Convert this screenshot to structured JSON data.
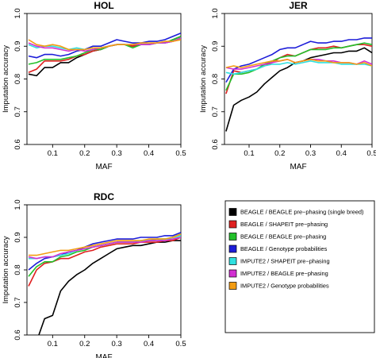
{
  "chart_data": [
    {
      "type": "line",
      "title": "HOL",
      "xlabel": "MAF",
      "ylabel": "Imputation accuracy",
      "xlim": [
        0.02,
        0.5
      ],
      "ylim": [
        0.6,
        1.0
      ],
      "xticks": [
        "0.1",
        "0.2",
        "0.3",
        "0.4",
        "0.5"
      ],
      "yticks": [
        "0.6",
        "0.7",
        "0.8",
        "0.9",
        "1.0"
      ],
      "x": [
        0.025,
        0.05,
        0.075,
        0.1,
        0.125,
        0.15,
        0.175,
        0.2,
        0.225,
        0.25,
        0.275,
        0.3,
        0.325,
        0.35,
        0.375,
        0.4,
        0.425,
        0.45,
        0.475,
        0.5
      ],
      "series": [
        {
          "key": "s1",
          "values": [
            0.815,
            0.81,
            0.835,
            0.835,
            0.85,
            0.85,
            0.865,
            0.875,
            0.885,
            0.89,
            0.9,
            0.905,
            0.905,
            0.9,
            0.905,
            0.905,
            0.91,
            0.91,
            0.92,
            0.93
          ]
        },
        {
          "key": "s2",
          "values": [
            0.82,
            0.83,
            0.855,
            0.855,
            0.855,
            0.86,
            0.87,
            0.875,
            0.885,
            0.89,
            0.9,
            0.905,
            0.905,
            0.9,
            0.905,
            0.905,
            0.91,
            0.91,
            0.915,
            0.925
          ]
        },
        {
          "key": "s3",
          "values": [
            0.845,
            0.85,
            0.86,
            0.86,
            0.86,
            0.865,
            0.87,
            0.88,
            0.89,
            0.89,
            0.9,
            0.905,
            0.905,
            0.895,
            0.905,
            0.905,
            0.91,
            0.91,
            0.92,
            0.93
          ]
        },
        {
          "key": "s4",
          "values": [
            0.87,
            0.865,
            0.875,
            0.875,
            0.87,
            0.875,
            0.885,
            0.89,
            0.9,
            0.9,
            0.91,
            0.92,
            0.915,
            0.91,
            0.91,
            0.915,
            0.915,
            0.92,
            0.93,
            0.94
          ]
        },
        {
          "key": "s5",
          "values": [
            0.905,
            0.895,
            0.9,
            0.9,
            0.895,
            0.89,
            0.895,
            0.89,
            0.895,
            0.895,
            0.9,
            0.905,
            0.905,
            0.905,
            0.905,
            0.905,
            0.91,
            0.91,
            0.915,
            0.925
          ]
        },
        {
          "key": "s6",
          "values": [
            0.91,
            0.9,
            0.895,
            0.895,
            0.89,
            0.885,
            0.89,
            0.885,
            0.89,
            0.895,
            0.9,
            0.905,
            0.905,
            0.905,
            0.905,
            0.905,
            0.91,
            0.91,
            0.915,
            0.925
          ]
        },
        {
          "key": "s7",
          "values": [
            0.92,
            0.905,
            0.9,
            0.905,
            0.9,
            0.89,
            0.89,
            0.89,
            0.895,
            0.895,
            0.9,
            0.905,
            0.905,
            0.905,
            0.91,
            0.91,
            0.91,
            0.915,
            0.915,
            0.92
          ]
        }
      ]
    },
    {
      "type": "line",
      "title": "JER",
      "xlabel": "MAF",
      "ylabel": "Imputation accuracy",
      "xlim": [
        0.02,
        0.5
      ],
      "ylim": [
        0.6,
        1.0
      ],
      "xticks": [
        "0.1",
        "0.2",
        "0.3",
        "0.4",
        "0.5"
      ],
      "yticks": [
        "0.6",
        "0.7",
        "0.8",
        "0.9",
        "1.0"
      ],
      "x": [
        0.025,
        0.05,
        0.075,
        0.1,
        0.125,
        0.15,
        0.175,
        0.2,
        0.225,
        0.25,
        0.275,
        0.3,
        0.325,
        0.35,
        0.375,
        0.4,
        0.425,
        0.45,
        0.475,
        0.5
      ],
      "series": [
        {
          "key": "s1",
          "values": [
            0.64,
            0.72,
            0.735,
            0.745,
            0.76,
            0.785,
            0.805,
            0.825,
            0.835,
            0.85,
            0.855,
            0.865,
            0.87,
            0.875,
            0.88,
            0.88,
            0.885,
            0.885,
            0.895,
            0.88
          ]
        },
        {
          "key": "s2",
          "values": [
            0.755,
            0.825,
            0.82,
            0.825,
            0.83,
            0.84,
            0.85,
            0.865,
            0.875,
            0.87,
            0.88,
            0.89,
            0.895,
            0.895,
            0.9,
            0.895,
            0.9,
            0.905,
            0.905,
            0.9
          ]
        },
        {
          "key": "s3",
          "values": [
            0.765,
            0.815,
            0.815,
            0.82,
            0.83,
            0.845,
            0.855,
            0.865,
            0.87,
            0.87,
            0.88,
            0.89,
            0.89,
            0.89,
            0.895,
            0.895,
            0.9,
            0.905,
            0.91,
            0.905
          ]
        },
        {
          "key": "s4",
          "values": [
            0.79,
            0.83,
            0.84,
            0.845,
            0.855,
            0.865,
            0.875,
            0.89,
            0.895,
            0.895,
            0.905,
            0.915,
            0.91,
            0.91,
            0.915,
            0.915,
            0.92,
            0.92,
            0.925,
            0.925
          ]
        },
        {
          "key": "s5",
          "values": [
            0.82,
            0.815,
            0.82,
            0.825,
            0.83,
            0.84,
            0.845,
            0.845,
            0.85,
            0.845,
            0.85,
            0.855,
            0.85,
            0.85,
            0.85,
            0.845,
            0.845,
            0.845,
            0.845,
            0.84
          ]
        },
        {
          "key": "s6",
          "values": [
            0.835,
            0.83,
            0.83,
            0.835,
            0.84,
            0.845,
            0.85,
            0.855,
            0.86,
            0.85,
            0.855,
            0.86,
            0.86,
            0.855,
            0.855,
            0.85,
            0.85,
            0.845,
            0.855,
            0.845
          ]
        },
        {
          "key": "s7",
          "values": [
            0.835,
            0.84,
            0.835,
            0.84,
            0.845,
            0.85,
            0.855,
            0.855,
            0.86,
            0.85,
            0.855,
            0.86,
            0.855,
            0.855,
            0.85,
            0.85,
            0.85,
            0.845,
            0.85,
            0.84
          ]
        }
      ]
    },
    {
      "type": "line",
      "title": "RDC",
      "xlabel": "MAF",
      "ylabel": "Imputation accuracy",
      "xlim": [
        0.02,
        0.5
      ],
      "ylim": [
        0.6,
        1.0
      ],
      "xticks": [
        "0.1",
        "0.2",
        "0.3",
        "0.4",
        "0.5"
      ],
      "yticks": [
        "0.6",
        "0.7",
        "0.8",
        "0.9",
        "1.0"
      ],
      "x": [
        0.025,
        0.05,
        0.075,
        0.1,
        0.125,
        0.15,
        0.175,
        0.2,
        0.225,
        0.25,
        0.275,
        0.3,
        0.325,
        0.35,
        0.375,
        0.4,
        0.425,
        0.45,
        0.475,
        0.5
      ],
      "series": [
        {
          "key": "s1",
          "values": [
            0.55,
            0.58,
            0.65,
            0.66,
            0.735,
            0.765,
            0.785,
            0.8,
            0.82,
            0.835,
            0.85,
            0.865,
            0.87,
            0.875,
            0.875,
            0.88,
            0.885,
            0.885,
            0.89,
            0.89
          ]
        },
        {
          "key": "s2",
          "values": [
            0.75,
            0.8,
            0.82,
            0.825,
            0.835,
            0.835,
            0.845,
            0.855,
            0.86,
            0.87,
            0.875,
            0.88,
            0.88,
            0.88,
            0.885,
            0.885,
            0.885,
            0.89,
            0.89,
            0.9
          ]
        },
        {
          "key": "s3",
          "values": [
            0.78,
            0.81,
            0.825,
            0.825,
            0.84,
            0.845,
            0.855,
            0.86,
            0.87,
            0.875,
            0.88,
            0.885,
            0.885,
            0.885,
            0.89,
            0.89,
            0.895,
            0.895,
            0.9,
            0.91
          ]
        },
        {
          "key": "s4",
          "values": [
            0.8,
            0.82,
            0.835,
            0.84,
            0.845,
            0.855,
            0.86,
            0.87,
            0.88,
            0.885,
            0.89,
            0.895,
            0.895,
            0.895,
            0.9,
            0.9,
            0.9,
            0.905,
            0.905,
            0.915
          ]
        },
        {
          "key": "s5",
          "values": [
            0.835,
            0.835,
            0.84,
            0.84,
            0.845,
            0.85,
            0.86,
            0.865,
            0.87,
            0.875,
            0.88,
            0.885,
            0.885,
            0.885,
            0.89,
            0.89,
            0.89,
            0.895,
            0.895,
            0.905
          ]
        },
        {
          "key": "s6",
          "values": [
            0.84,
            0.835,
            0.84,
            0.84,
            0.85,
            0.855,
            0.86,
            0.865,
            0.87,
            0.875,
            0.88,
            0.885,
            0.885,
            0.885,
            0.885,
            0.89,
            0.89,
            0.89,
            0.895,
            0.9
          ]
        },
        {
          "key": "s7",
          "values": [
            0.845,
            0.845,
            0.85,
            0.855,
            0.86,
            0.86,
            0.865,
            0.87,
            0.875,
            0.88,
            0.885,
            0.89,
            0.89,
            0.89,
            0.89,
            0.895,
            0.895,
            0.895,
            0.9,
            0.91
          ]
        }
      ]
    }
  ],
  "legend": {
    "placement": "bottom-right panel",
    "entries": [
      {
        "key": "s1",
        "label": "BEAGLE / BEAGLE pre−phasing (single breed)",
        "color": "#000000"
      },
      {
        "key": "s2",
        "label": "BEAGLE / SHAPEIT pre−phasing",
        "color": "#df2020"
      },
      {
        "key": "s3",
        "label": "BEAGLE / BEAGLE pre−phasing",
        "color": "#22c02a"
      },
      {
        "key": "s4",
        "label": "BEAGLE / Genotype probabilities",
        "color": "#1c1cd8"
      },
      {
        "key": "s5",
        "label": "IMPUTE2 / SHAPEIT pre−phasing",
        "color": "#2fe0e0"
      },
      {
        "key": "s6",
        "label": "IMPUTE2 / BEAGLE pre−phasing",
        "color": "#d22fd2"
      },
      {
        "key": "s7",
        "label": "IMPUTE2 / Genotype probabilities",
        "color": "#f39c12"
      }
    ]
  }
}
